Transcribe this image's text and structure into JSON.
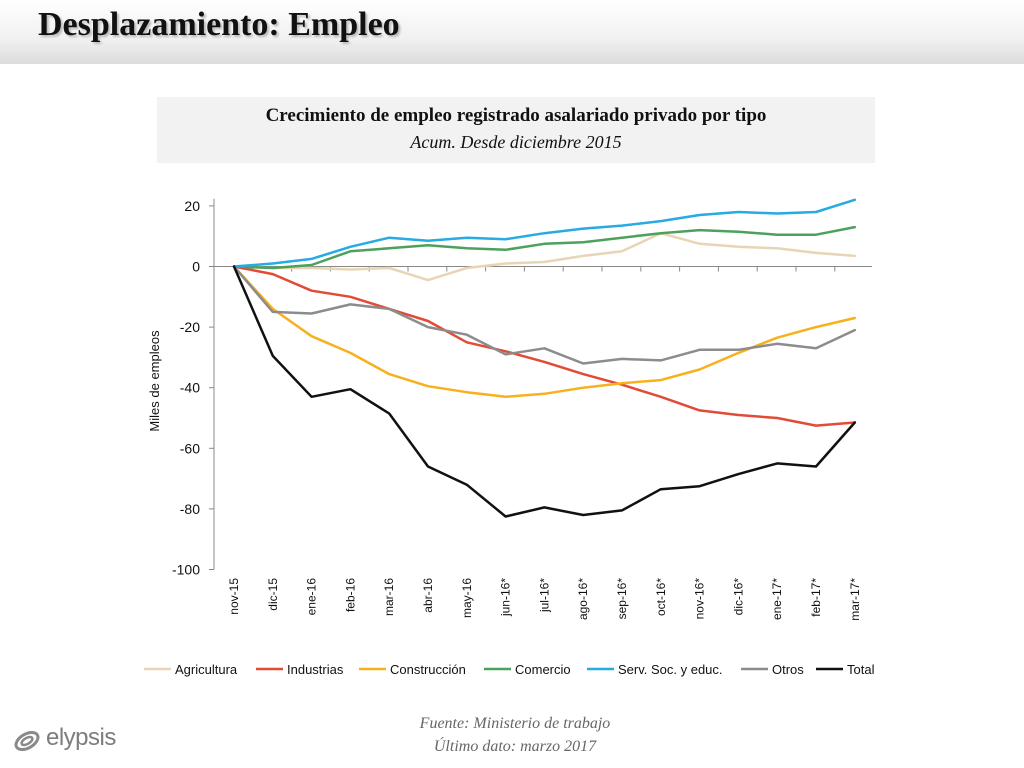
{
  "page": {
    "title": "Desplazamiento: Empleo",
    "source": "Fuente: Ministerio de trabajo",
    "last_update": "Último dato: marzo 2017",
    "logo_text": "elypsis"
  },
  "chart_data": {
    "type": "line",
    "title": "Crecimiento de empleo registrado asalariado privado por tipo",
    "subtitle": "Acum. Desde diciembre 2015",
    "xlabel": "",
    "ylabel": "Miles de empleos",
    "ylim": [
      -100,
      25
    ],
    "yticks": [
      20,
      0,
      -20,
      -40,
      -60,
      -80,
      -100
    ],
    "ytick_labels": [
      "20",
      "0",
      "-20",
      "-40",
      "-60",
      "-80",
      "-100"
    ],
    "categories": [
      "nov-15",
      "dic-15",
      "ene-16",
      "feb-16",
      "mar-16",
      "abr-16",
      "may-16",
      "jun-16*",
      "jul-16*",
      "ago-16*",
      "sep-16*",
      "oct-16*",
      "nov-16*",
      "dic-16*",
      "ene-17*",
      "feb-17*",
      "mar-17*"
    ],
    "legend_position": "bottom",
    "series": [
      {
        "name": "Agricultura",
        "color": "#e8d5b5",
        "values": [
          0,
          -0.5,
          -0.5,
          -1,
          -0.5,
          -4.5,
          -0.5,
          1,
          1.5,
          3.5,
          5,
          11,
          7.5,
          6.5,
          6,
          4.5,
          3.5
        ]
      },
      {
        "name": "Industrias",
        "color": "#e24b35",
        "values": [
          0,
          -2.5,
          -8,
          -10,
          -14,
          -18,
          -25,
          -28,
          -31.5,
          -35.5,
          -39,
          -43,
          -47.5,
          -49,
          -50,
          -52.5,
          -51.5
        ]
      },
      {
        "name": "Construcción",
        "color": "#f6b11c",
        "values": [
          0,
          -14,
          -23,
          -28.5,
          -35.5,
          -39.5,
          -41.5,
          -43,
          -42,
          -40,
          -38.5,
          -37.5,
          -34,
          -28.5,
          -23.5,
          -20,
          -17
        ]
      },
      {
        "name": "Comercio",
        "color": "#4ea05d",
        "values": [
          0,
          -0.5,
          0.5,
          5,
          6,
          7,
          6,
          5.5,
          7.5,
          8,
          9.5,
          11,
          12,
          11.5,
          10.5,
          10.5,
          13
        ]
      },
      {
        "name": "Serv. Soc. y educ.",
        "color": "#26abe2",
        "values": [
          0,
          1,
          2.5,
          6.5,
          9.5,
          8.5,
          9.5,
          9,
          11,
          12.5,
          13.5,
          15,
          17,
          18,
          17.5,
          18,
          22
        ]
      },
      {
        "name": "Otros",
        "color": "#8c8c8c",
        "values": [
          0,
          -15,
          -15.5,
          -12.5,
          -14,
          -20,
          -22.5,
          -29,
          -27,
          -32,
          -30.5,
          -31,
          -27.5,
          -27.5,
          -25.5,
          -27,
          -21
        ]
      },
      {
        "name": "Total",
        "color": "#111111",
        "values": [
          0,
          -29.5,
          -43,
          -40.5,
          -48.5,
          -66,
          -72,
          -82.5,
          -79.5,
          -82,
          -80.5,
          -73.5,
          -72.5,
          -68.5,
          -65,
          -66,
          -51.5
        ]
      }
    ]
  }
}
